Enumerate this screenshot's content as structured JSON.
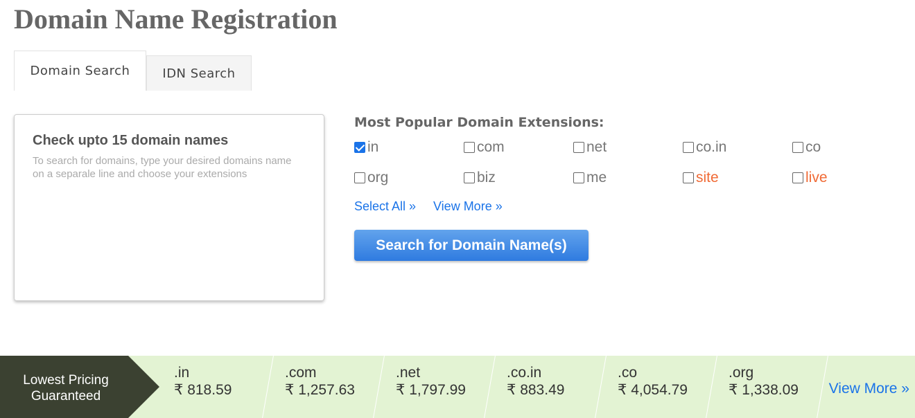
{
  "title": "Domain Name Registration",
  "tabs": [
    "Domain Search",
    "IDN Search"
  ],
  "search_box": {
    "heading": "Check upto 15 domain names",
    "placeholder": "To search for domains, type your desired domains name on a separale line and choose your extensions"
  },
  "extensions_heading": "Most Popular Domain Extensions:",
  "extensions": [
    {
      "label": "in",
      "checked": true
    },
    {
      "label": "com",
      "checked": false
    },
    {
      "label": "net",
      "checked": false
    },
    {
      "label": "co.in",
      "checked": false
    },
    {
      "label": "co",
      "checked": false
    },
    {
      "label": "org",
      "checked": false
    },
    {
      "label": "biz",
      "checked": false
    },
    {
      "label": "me",
      "checked": false
    },
    {
      "label": "site",
      "checked": false,
      "color": "#f06a35"
    },
    {
      "label": "live",
      "checked": false,
      "color": "#f06a35"
    }
  ],
  "select_all": "Select All »",
  "view_more": "View More »",
  "search_button": "Search for Domain Name(s)",
  "pricing": {
    "badge": "Lowest Pricing Guaranteed",
    "items": [
      {
        "ext": ".in",
        "price": "₹ 818.59"
      },
      {
        "ext": ".com",
        "price": "₹ 1,257.63"
      },
      {
        "ext": ".net",
        "price": "₹ 1,797.99"
      },
      {
        "ext": ".co.in",
        "price": "₹ 883.49"
      },
      {
        "ext": ".co",
        "price": "₹ 4,054.79"
      },
      {
        "ext": ".org",
        "price": "₹ 1,338.09"
      }
    ],
    "view_more": "View More »"
  }
}
